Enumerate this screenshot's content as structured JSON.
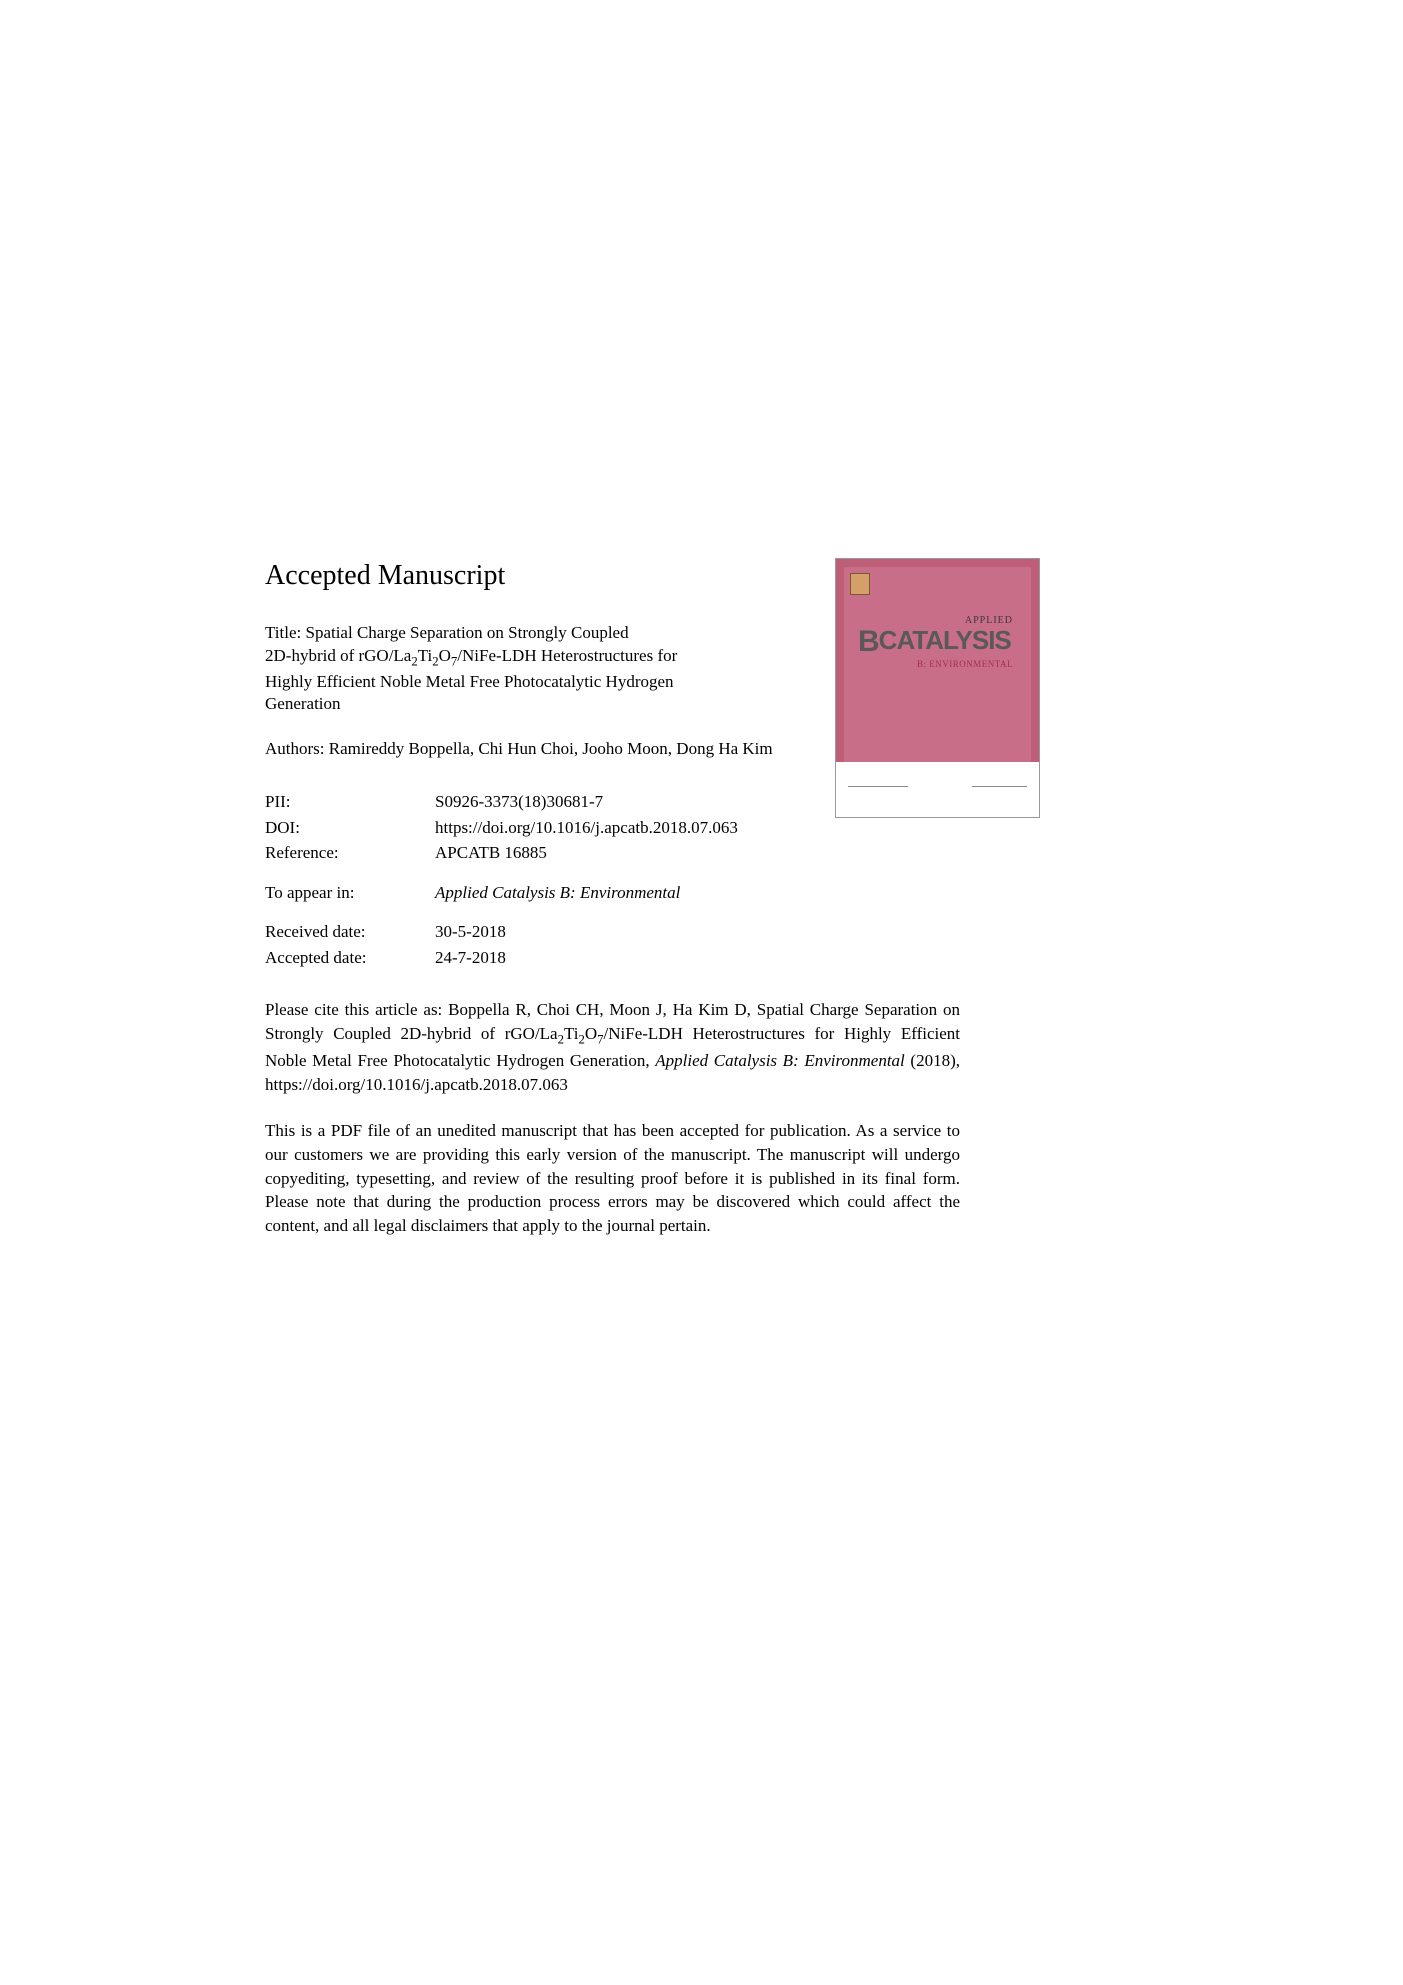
{
  "heading": "Accepted Manuscript",
  "title_prefix": "Title: ",
  "title_line1": "Spatial Charge Separation on Strongly Coupled",
  "title_line2a": "2D-hybrid of rGO/La",
  "title_sub1": "2",
  "title_line2b": "Ti",
  "title_sub2": "2",
  "title_line2c": "O",
  "title_sub3": "7",
  "title_line2d": "/NiFe-LDH Heterostructures for",
  "title_line3": "Highly Efficient Noble Metal Free Photocatalytic Hydrogen",
  "title_line4": "Generation",
  "authors_prefix": "Authors: ",
  "authors_text": "Ramireddy Boppella, Chi Hun Choi, Jooho Moon, Dong Ha Kim",
  "meta": {
    "pii_label": "PII:",
    "pii_value": "S0926-3373(18)30681-7",
    "doi_label": "DOI:",
    "doi_value": "https://doi.org/10.1016/j.apcatb.2018.07.063",
    "ref_label": "Reference:",
    "ref_value": "APCATB 16885",
    "appear_label": "To appear in:",
    "appear_value": "Applied Catalysis B: Environmental",
    "received_label": "Received date:",
    "received_value": "30-5-2018",
    "accepted_label": "Accepted date:",
    "accepted_value": "24-7-2018"
  },
  "citation": {
    "part1": "Please cite this article as: Boppella R, Choi CH, Moon J, Ha Kim D, Spatial Charge Separation on Strongly Coupled 2D-hybrid of rGO/La",
    "sub1": "2",
    "part2": "Ti",
    "sub2": "2",
    "part3": "O",
    "sub3": "7",
    "part4": "/NiFe-LDH Heterostructures for Highly Efficient Noble Metal Free Photocatalytic Hydrogen Generation, ",
    "journal": "Applied Catalysis B: Environmental",
    "part5": " (2018), https://doi.org/10.1016/j.apcatb.2018.07.063"
  },
  "disclaimer": "This is a PDF file of an unedited manuscript that has been accepted for publication. As a service to our customers we are providing this early version of the manuscript. The manuscript will undergo copyediting, typesetting, and review of the resulting proof before it is published in its final form. Please note that during the production process errors may be discovered which could affect the content, and all legal disclaimers that apply to the journal pertain.",
  "cover": {
    "applied": "APPLIED",
    "title_b": "B",
    "title_rest": "CATALYSIS",
    "sub": "B: ENVIRONMENTAL"
  }
}
